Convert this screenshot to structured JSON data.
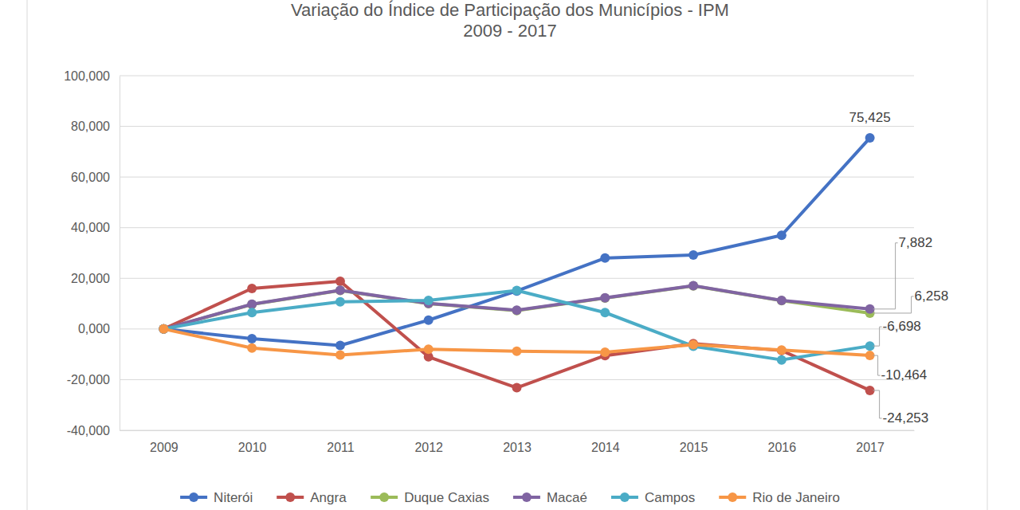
{
  "chart_data": {
    "type": "line",
    "title": "Variação do Índice de Participação dos Municípios - IPM",
    "subtitle": "2009 - 2017",
    "categories": [
      "2009",
      "2010",
      "2011",
      "2012",
      "2013",
      "2014",
      "2015",
      "2016",
      "2017"
    ],
    "ylim": [
      -40,
      100
    ],
    "yticks": [
      {
        "value": -40,
        "label": "-40,000"
      },
      {
        "value": -20,
        "label": "-20,000"
      },
      {
        "value": 0,
        "label": "0,000"
      },
      {
        "value": 20,
        "label": "20,000"
      },
      {
        "value": 40,
        "label": "40,000"
      },
      {
        "value": 60,
        "label": "60,000"
      },
      {
        "value": 80,
        "label": "80,000"
      },
      {
        "value": 100,
        "label": "100,000"
      }
    ],
    "grid": true,
    "legend": "bottom",
    "data_labels": true,
    "marker": "circle",
    "line_style": "solid",
    "series": [
      {
        "name": "Niterói",
        "color": "#4472c4",
        "values": [
          0,
          -3.8,
          -6.5,
          3.5,
          15,
          28,
          29.2,
          37,
          75.425
        ],
        "value_labels": [
          null,
          null,
          null,
          null,
          null,
          null,
          null,
          null,
          "75,425"
        ]
      },
      {
        "name": "Angra",
        "color": "#c0504d",
        "values": [
          0,
          16,
          18.8,
          -11,
          -23.2,
          -10.5,
          -5.8,
          -8.5,
          -24.253
        ],
        "value_labels": [
          null,
          null,
          null,
          null,
          null,
          null,
          null,
          null,
          "-24,253"
        ]
      },
      {
        "name": "Duque Caxias",
        "color": "#9bbb59",
        "values": [
          0,
          9.7,
          15.2,
          10,
          7.3,
          12.2,
          17,
          11.2,
          6.258
        ],
        "value_labels": [
          null,
          null,
          null,
          null,
          null,
          null,
          null,
          null,
          "6,258"
        ]
      },
      {
        "name": "Macaé",
        "color": "#8064a2",
        "values": [
          0,
          9.8,
          15.3,
          10.1,
          7.4,
          12.3,
          17.1,
          11.3,
          7.882
        ],
        "value_labels": [
          null,
          null,
          null,
          null,
          null,
          null,
          null,
          null,
          "7,882"
        ]
      },
      {
        "name": "Campos",
        "color": "#4bacc6",
        "values": [
          0,
          6.5,
          10.7,
          11.3,
          15.2,
          6.5,
          -6.8,
          -12.2,
          -6.698
        ],
        "value_labels": [
          null,
          null,
          null,
          null,
          null,
          null,
          null,
          null,
          "-6,698"
        ]
      },
      {
        "name": "Rio de Janeiro",
        "color": "#f79646",
        "values": [
          0,
          -7.5,
          -10.3,
          -8,
          -8.8,
          -9.2,
          -6.2,
          -8.3,
          -10.464
        ],
        "value_labels": [
          null,
          null,
          null,
          null,
          null,
          null,
          null,
          null,
          "-10,464"
        ]
      }
    ]
  }
}
